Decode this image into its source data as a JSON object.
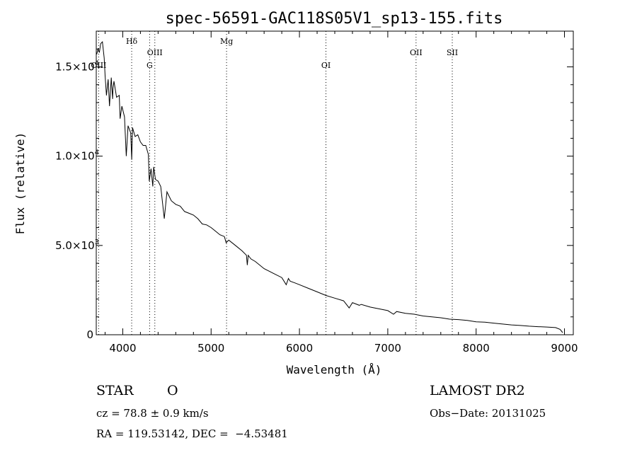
{
  "chart_data": {
    "type": "line",
    "title": "spec-56591-GAC118S05V1_sp13-155.fits",
    "xlabel": "Wavelength (Å)",
    "ylabel": "Flux (relative)",
    "xlim": [
      3700,
      9100
    ],
    "ylim": [
      0,
      17000
    ],
    "x_ticks": [
      4000,
      5000,
      6000,
      7000,
      8000,
      9000
    ],
    "x_tick_labels": [
      "4000",
      "5000",
      "6000",
      "7000",
      "8000",
      "9000"
    ],
    "y_ticks": [
      0,
      5000,
      10000,
      15000
    ],
    "y_tick_labels": [
      {
        "mant": "0",
        "exp": ""
      },
      {
        "mant": "5.0×10",
        "exp": "3"
      },
      {
        "mant": "1.0×10",
        "exp": "4"
      },
      {
        "mant": "1.5×10",
        "exp": "4"
      }
    ],
    "series": [
      {
        "x": [
          3705,
          3720,
          3735,
          3750,
          3770,
          3790,
          3800,
          3815,
          3835,
          3850,
          3870,
          3885,
          3890,
          3900,
          3930,
          3960,
          3970,
          3990,
          4020,
          4040,
          4060,
          4090,
          4101,
          4110,
          4140,
          4170,
          4200,
          4230,
          4260,
          4290,
          4300,
          4320,
          4340,
          4350,
          4370,
          4400,
          4430,
          4470,
          4500,
          4550,
          4600,
          4650,
          4700,
          4750,
          4800,
          4850,
          4900,
          4950,
          5000,
          5050,
          5100,
          5150,
          5170,
          5200,
          5250,
          5300,
          5350,
          5400,
          5410,
          5420,
          5450,
          5500,
          5600,
          5700,
          5800,
          5850,
          5875,
          5895,
          5950,
          6000,
          6100,
          6200,
          6300,
          6400,
          6500,
          6563,
          6600,
          6678,
          6700,
          6800,
          6900,
          7000,
          7065,
          7100,
          7200,
          7300,
          7400,
          7500,
          7600,
          7700,
          7800,
          7900,
          8000,
          8100,
          8200,
          8300,
          8400,
          8500,
          8600,
          8700,
          8800,
          8900,
          8950,
          8980
        ],
        "y": [
          15700,
          16000,
          15800,
          16300,
          16400,
          15500,
          14500,
          13400,
          14300,
          12800,
          14400,
          13200,
          13800,
          14200,
          13300,
          13400,
          12100,
          12800,
          12200,
          10000,
          11700,
          11300,
          9800,
          11600,
          11100,
          11200,
          10800,
          10600,
          10600,
          10100,
          8600,
          9300,
          8300,
          9400,
          8700,
          8600,
          8300,
          6500,
          8000,
          7500,
          7300,
          7200,
          6900,
          6800,
          6700,
          6500,
          6200,
          6150,
          6000,
          5800,
          5600,
          5500,
          5150,
          5300,
          5100,
          4900,
          4700,
          4450,
          3900,
          4450,
          4250,
          4100,
          3700,
          3450,
          3200,
          2800,
          3150,
          3000,
          2900,
          2800,
          2600,
          2400,
          2200,
          2050,
          1900,
          1500,
          1800,
          1650,
          1700,
          1550,
          1450,
          1350,
          1150,
          1300,
          1200,
          1150,
          1050,
          1000,
          950,
          870,
          850,
          800,
          720,
          700,
          650,
          600,
          550,
          520,
          480,
          450,
          430,
          400,
          300,
          120
        ]
      }
    ],
    "lines": [
      {
        "label": "Hδ",
        "x": 4101,
        "row": 0
      },
      {
        "label": "OIII",
        "x": 4363,
        "row": 1
      },
      {
        "label": "G",
        "x": 4304,
        "row": 2
      },
      {
        "label": "Mg",
        "x": 5175,
        "row": 0
      },
      {
        "label": "OI",
        "x": 6300,
        "row": 2
      },
      {
        "label": "OII",
        "x": 7320,
        "row": 1
      },
      {
        "label": "SII",
        "x": 7730,
        "row": 1
      },
      {
        "label": "OIII",
        "x": 3727,
        "row": 2
      }
    ]
  },
  "info": {
    "object_type": "STAR",
    "subclass": "O",
    "survey": "LAMOST DR2",
    "cz": "cz = 78.8 ± 0.9 km/s",
    "obs_date": "Obs−Date: 20131025",
    "coords": "RA = 119.53142, DEC =  −4.53481"
  }
}
